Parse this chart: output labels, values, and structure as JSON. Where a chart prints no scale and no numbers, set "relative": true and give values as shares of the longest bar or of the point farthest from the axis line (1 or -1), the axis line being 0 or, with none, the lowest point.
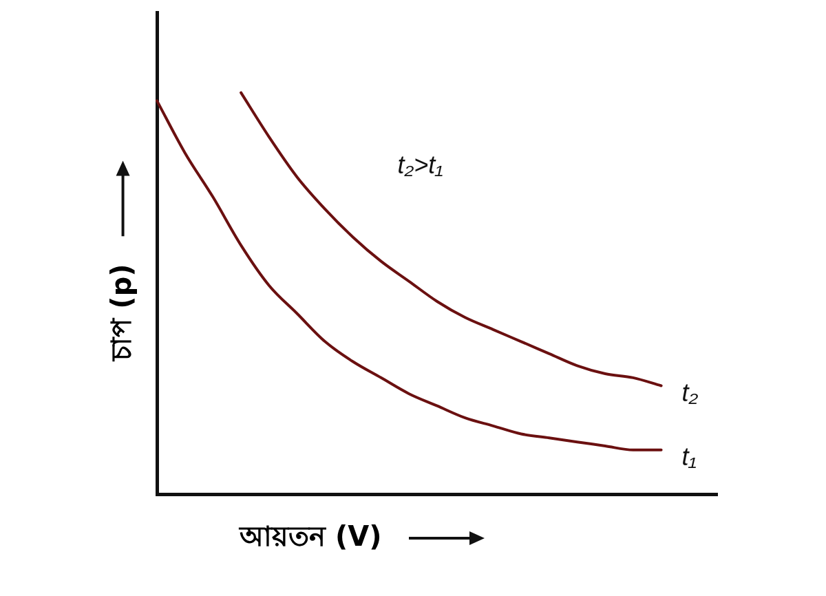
{
  "chart_data": {
    "type": "line",
    "relative": true,
    "xlabel": "আয়তন (V)",
    "ylabel": "চাপ (p)",
    "annotations": [
      "t₂>t₁"
    ],
    "categories": [
      null,
      null,
      null,
      null,
      null,
      null,
      null,
      null,
      null,
      null,
      null,
      null,
      null,
      null,
      null,
      null,
      null,
      null,
      null,
      null,
      null
    ],
    "series": [
      {
        "name": "t₁",
        "color": "#6b1010",
        "values": [
          0.98,
          0.85,
          0.74,
          0.62,
          0.52,
          0.45,
          0.38,
          0.33,
          0.29,
          0.25,
          0.22,
          0.19,
          0.17,
          0.15,
          0.14,
          0.13,
          0.12,
          0.11,
          0.11,
          null,
          null
        ]
      },
      {
        "name": "t₂",
        "color": "#6b1010",
        "values": [
          null,
          null,
          null,
          1,
          0.89,
          0.79,
          0.71,
          0.64,
          0.58,
          0.53,
          0.48,
          0.44,
          0.41,
          0.38,
          0.35,
          0.32,
          0.3,
          0.29,
          0.27,
          null,
          null
        ]
      }
    ],
    "grid": false,
    "legend": false,
    "marker": "none",
    "line_style": "solid"
  }
}
